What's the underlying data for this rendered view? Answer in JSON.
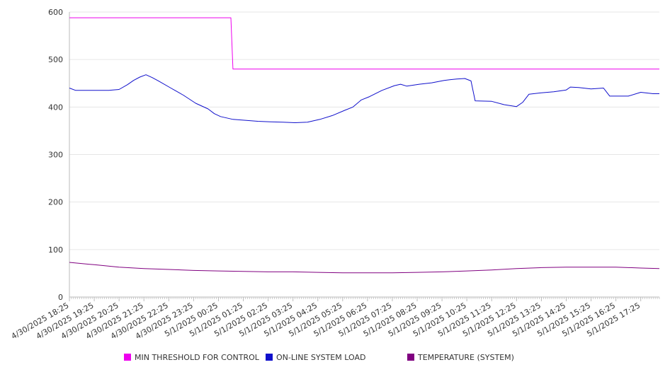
{
  "chart_data": {
    "type": "line",
    "title": "",
    "xlabel": "",
    "ylabel": "",
    "ylim": [
      0,
      600
    ],
    "yticks": [
      0,
      100,
      200,
      300,
      400,
      500,
      600
    ],
    "grid": true,
    "legend_position": "bottom",
    "x_tick_labels": [
      "4/30/2025 18:25",
      "4/30/2025 19:25",
      "4/30/2025 20:25",
      "4/30/2025 21:25",
      "4/30/2025 22:25",
      "4/30/2025 23:25",
      "5/1/2025 00:25",
      "5/1/2025 01:25",
      "5/1/2025 02:25",
      "5/1/2025 03:25",
      "5/1/2025 04:25",
      "5/1/2025 05:25",
      "5/1/2025 06:25",
      "5/1/2025 07:25",
      "5/1/2025 08:25",
      "5/1/2025 09:25",
      "5/1/2025 10:25",
      "5/1/2025 11:25",
      "5/1/2025 12:25",
      "5/1/2025 13:25",
      "5/1/2025 14:25",
      "5/1/2025 15:25",
      "5/1/2025 16:25",
      "5/1/2025 17:25"
    ],
    "x_range": [
      "4/30/2025 18:25",
      "5/1/2025 18:10"
    ],
    "series": [
      {
        "name": "MIN THRESHOLD FOR CONTROL",
        "color": "#ee00ee",
        "points": [
          [
            "4/30/2025 18:25",
            588
          ],
          [
            "5/1/2025 00:55",
            588
          ],
          [
            "5/1/2025 01:00",
            480
          ],
          [
            "5/1/2025 18:10",
            480
          ]
        ]
      },
      {
        "name": "ON-LINE SYSTEM LOAD",
        "color": "#1010cc",
        "points": [
          [
            "4/30/2025 18:25",
            440
          ],
          [
            "4/30/2025 18:40",
            435
          ],
          [
            "4/30/2025 19:00",
            435
          ],
          [
            "4/30/2025 19:30",
            435
          ],
          [
            "4/30/2025 20:00",
            435
          ],
          [
            "4/30/2025 20:25",
            437
          ],
          [
            "4/30/2025 20:45",
            447
          ],
          [
            "4/30/2025 21:00",
            456
          ],
          [
            "4/30/2025 21:15",
            463
          ],
          [
            "4/30/2025 21:30",
            468
          ],
          [
            "4/30/2025 21:45",
            462
          ],
          [
            "4/30/2025 22:00",
            455
          ],
          [
            "4/30/2025 22:30",
            440
          ],
          [
            "4/30/2025 23:00",
            425
          ],
          [
            "4/30/2025 23:30",
            408
          ],
          [
            "5/1/2025 00:00",
            396
          ],
          [
            "5/1/2025 00:15",
            386
          ],
          [
            "5/1/2025 00:30",
            380
          ],
          [
            "5/1/2025 01:00",
            374
          ],
          [
            "5/1/2025 01:30",
            372
          ],
          [
            "5/1/2025 02:00",
            370
          ],
          [
            "5/1/2025 02:30",
            369
          ],
          [
            "5/1/2025 03:00",
            368
          ],
          [
            "5/1/2025 03:30",
            367
          ],
          [
            "5/1/2025 04:00",
            368
          ],
          [
            "5/1/2025 04:30",
            374
          ],
          [
            "5/1/2025 05:00",
            382
          ],
          [
            "5/1/2025 05:30",
            393
          ],
          [
            "5/1/2025 05:50",
            400
          ],
          [
            "5/1/2025 06:10",
            415
          ],
          [
            "5/1/2025 06:30",
            422
          ],
          [
            "5/1/2025 07:00",
            435
          ],
          [
            "5/1/2025 07:30",
            445
          ],
          [
            "5/1/2025 07:45",
            448
          ],
          [
            "5/1/2025 08:00",
            444
          ],
          [
            "5/1/2025 08:30",
            448
          ],
          [
            "5/1/2025 09:00",
            451
          ],
          [
            "5/1/2025 09:30",
            456
          ],
          [
            "5/1/2025 10:00",
            459
          ],
          [
            "5/1/2025 10:20",
            460
          ],
          [
            "5/1/2025 10:35",
            455
          ],
          [
            "5/1/2025 10:45",
            413
          ],
          [
            "5/1/2025 11:25",
            412
          ],
          [
            "5/1/2025 11:55",
            405
          ],
          [
            "5/1/2025 12:25",
            401
          ],
          [
            "5/1/2025 12:40",
            410
          ],
          [
            "5/1/2025 12:55",
            427
          ],
          [
            "5/1/2025 13:25",
            430
          ],
          [
            "5/1/2025 13:55",
            432
          ],
          [
            "5/1/2025 14:25",
            436
          ],
          [
            "5/1/2025 14:35",
            442
          ],
          [
            "5/1/2025 14:55",
            441
          ],
          [
            "5/1/2025 15:25",
            438
          ],
          [
            "5/1/2025 15:55",
            440
          ],
          [
            "5/1/2025 16:10",
            423
          ],
          [
            "5/1/2025 16:25",
            423
          ],
          [
            "5/1/2025 16:55",
            423
          ],
          [
            "5/1/2025 17:25",
            431
          ],
          [
            "5/1/2025 17:55",
            428
          ],
          [
            "5/1/2025 18:10",
            428
          ]
        ]
      },
      {
        "name": "TEMPERATURE (SYSTEM)",
        "color": "#800080",
        "points": [
          [
            "4/30/2025 18:25",
            73
          ],
          [
            "4/30/2025 19:25",
            68
          ],
          [
            "4/30/2025 20:25",
            63
          ],
          [
            "4/30/2025 21:25",
            60
          ],
          [
            "4/30/2025 22:25",
            58
          ],
          [
            "4/30/2025 23:25",
            56
          ],
          [
            "5/1/2025 00:25",
            55
          ],
          [
            "5/1/2025 01:25",
            54
          ],
          [
            "5/1/2025 02:25",
            53
          ],
          [
            "5/1/2025 03:25",
            53
          ],
          [
            "5/1/2025 04:25",
            52
          ],
          [
            "5/1/2025 05:25",
            51
          ],
          [
            "5/1/2025 06:25",
            51
          ],
          [
            "5/1/2025 07:25",
            51
          ],
          [
            "5/1/2025 08:25",
            52
          ],
          [
            "5/1/2025 09:25",
            53
          ],
          [
            "5/1/2025 10:25",
            55
          ],
          [
            "5/1/2025 11:25",
            57
          ],
          [
            "5/1/2025 12:25",
            60
          ],
          [
            "5/1/2025 13:25",
            62
          ],
          [
            "5/1/2025 14:25",
            63
          ],
          [
            "5/1/2025 15:25",
            63
          ],
          [
            "5/1/2025 16:25",
            63
          ],
          [
            "5/1/2025 17:25",
            61
          ],
          [
            "5/1/2025 18:10",
            60
          ]
        ]
      }
    ]
  },
  "legend": {
    "items": [
      {
        "label": "MIN THRESHOLD FOR CONTROL",
        "color": "#ee00ee"
      },
      {
        "label": "ON-LINE SYSTEM LOAD",
        "color": "#1010cc"
      },
      {
        "label": "TEMPERATURE (SYSTEM)",
        "color": "#800080"
      }
    ]
  },
  "colors": {
    "grid": "#e6e6e6",
    "axis": "#bbbbbb",
    "text": "#333333"
  }
}
